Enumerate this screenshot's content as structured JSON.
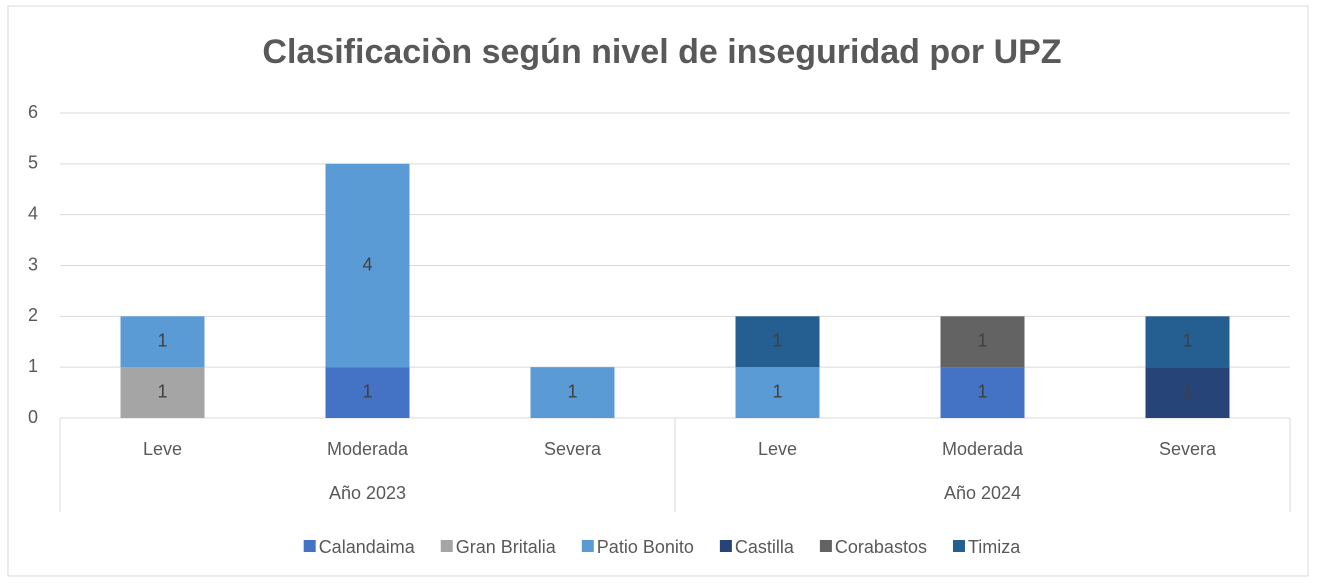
{
  "chart_data": {
    "type": "stacked_bar",
    "title": "Clasificaciòn según nivel de inseguridad por UPZ",
    "groups": [
      {
        "name": "Año 2023",
        "categories": [
          "Leve",
          "Moderada",
          "Severa"
        ]
      },
      {
        "name": "Año 2024",
        "categories": [
          "Leve",
          "Moderada",
          "Severa"
        ]
      }
    ],
    "series": [
      {
        "name": "Calandaima",
        "color": "#4472c4",
        "values": [
          null,
          1,
          null,
          null,
          1,
          null
        ]
      },
      {
        "name": "Gran Britalia",
        "color": "#a5a5a5",
        "values": [
          1,
          null,
          null,
          null,
          null,
          null
        ]
      },
      {
        "name": "Patio Bonito",
        "color": "#5b9bd5",
        "values": [
          1,
          4,
          1,
          1,
          null,
          null
        ]
      },
      {
        "name": "Castilla",
        "color": "#264478",
        "values": [
          null,
          null,
          null,
          null,
          null,
          1
        ]
      },
      {
        "name": "Corabastos",
        "color": "#636363",
        "values": [
          null,
          null,
          null,
          null,
          1,
          null
        ]
      },
      {
        "name": "Timiza",
        "color": "#255e91",
        "values": [
          null,
          null,
          null,
          1,
          null,
          1
        ]
      }
    ],
    "ylim": [
      0,
      6
    ],
    "yticks": [
      0,
      1,
      2,
      3,
      4,
      5,
      6
    ],
    "grid": true,
    "legend": "bottom",
    "data_labels": true
  }
}
